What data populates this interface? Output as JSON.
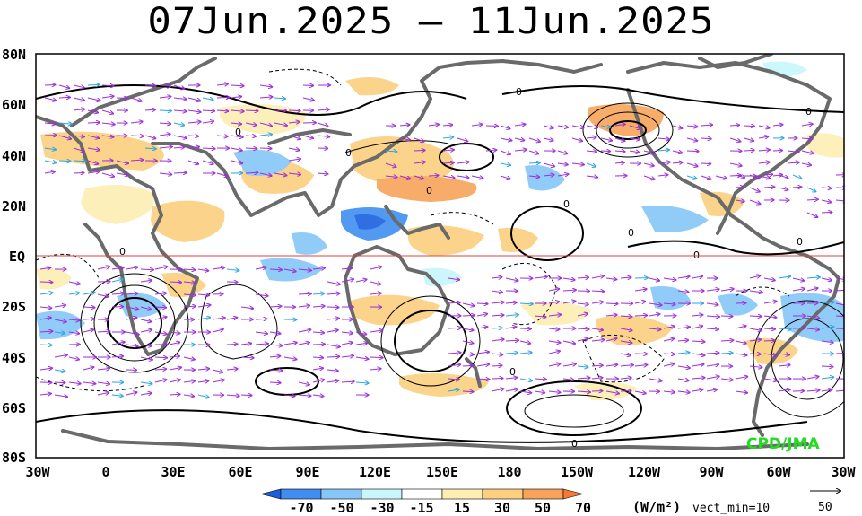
{
  "title": "07Jun.2025 – 11Jun.2025",
  "credit": "CPD/JMA",
  "y_axis_labels": [
    "80N",
    "60N",
    "40N",
    "20N",
    "EQ",
    "20S",
    "40S",
    "60S",
    "80S"
  ],
  "x_axis_labels": [
    "30W",
    "0",
    "30E",
    "60E",
    "90E",
    "120E",
    "150E",
    "180",
    "150W",
    "120W",
    "90W",
    "60W",
    "30W"
  ],
  "colorbar": {
    "labels": [
      "-70",
      "-50",
      "-30",
      "-15",
      "15",
      "30",
      "50",
      "70"
    ],
    "units": "(W/m²)",
    "vect_min": "vect_min=10",
    "ref_vector_value": "50",
    "colors": [
      "#1a5fe0",
      "#3f8ef0",
      "#86c6f8",
      "#c7f6fb",
      "#ffffff",
      "#fdeeb2",
      "#fbcf7e",
      "#f7a45a",
      "#f47a33"
    ]
  },
  "contour_label": "0",
  "colors": {
    "vector_main": "#9d2fd8",
    "vector_strong": "#2da6e0",
    "equator_line": "#e04040",
    "coastline": "#6a6a6a",
    "credit": "#22dd22"
  }
}
